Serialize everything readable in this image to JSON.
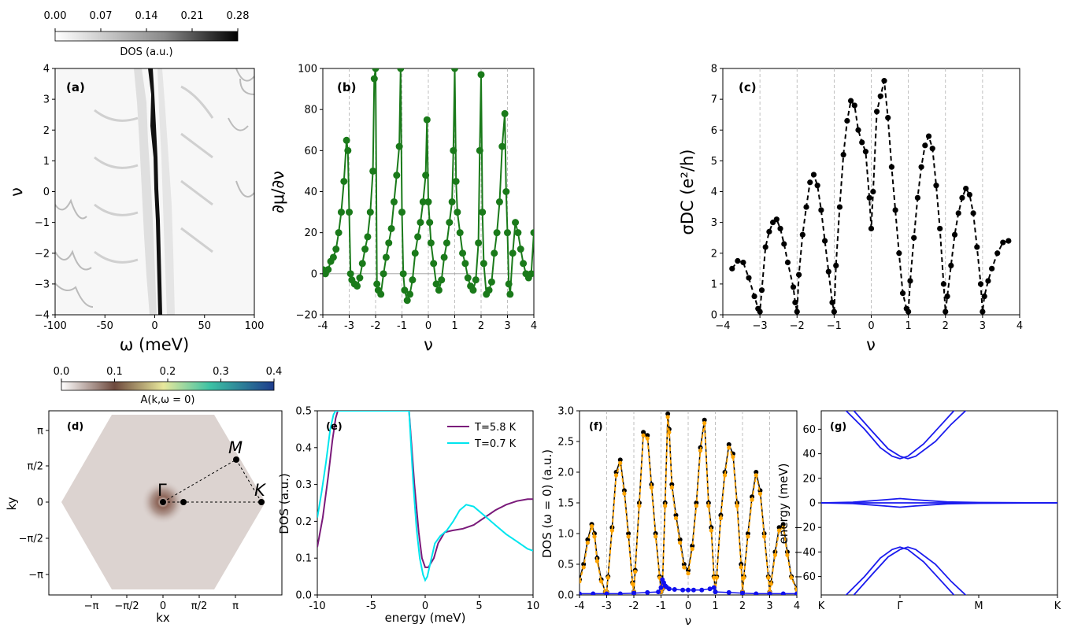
{
  "chart_data": [
    {
      "panel": "(a)",
      "type": "heatmap",
      "xlabel": "ω (meV)",
      "ylabel": "ν",
      "xlim": [
        -100,
        100
      ],
      "ylim": [
        -4,
        4
      ],
      "xticks": [
        "-100",
        "-50",
        "0",
        "50",
        "100"
      ],
      "yticks": [
        "4",
        "3",
        "2",
        "1",
        "0",
        "−1",
        "−2",
        "−3",
        "−4"
      ],
      "colorbar": {
        "label": "DOS (a.u.)",
        "ticks": [
          "0.00",
          "0.07",
          "0.14",
          "0.21",
          "0.28"
        ],
        "colors": [
          "#ffffff",
          "#000000"
        ]
      }
    },
    {
      "panel": "(b)",
      "type": "line",
      "ylabel": "∂μ/∂ν",
      "xlabel": "ν",
      "xlim": [
        -4,
        4
      ],
      "ylim": [
        -20,
        100
      ],
      "xticks": [
        "-4",
        "-3",
        "-2",
        "-1",
        "0",
        "1",
        "2",
        "3",
        "4"
      ],
      "yticks": [
        "100",
        "80",
        "60",
        "40",
        "20",
        "0",
        "−20"
      ],
      "color": "#1a7a1a",
      "x": [
        -4.0,
        -3.9,
        -3.8,
        -3.7,
        -3.6,
        -3.5,
        -3.4,
        -3.3,
        -3.2,
        -3.1,
        -3.05,
        -3.0,
        -2.95,
        -2.9,
        -2.8,
        -2.7,
        -2.6,
        -2.5,
        -2.4,
        -2.3,
        -2.2,
        -2.1,
        -2.05,
        -2.0,
        -1.95,
        -1.9,
        -1.8,
        -1.7,
        -1.6,
        -1.5,
        -1.4,
        -1.3,
        -1.2,
        -1.1,
        -1.05,
        -1.0,
        -0.95,
        -0.9,
        -0.8,
        -0.7,
        -0.6,
        -0.5,
        -0.4,
        -0.3,
        -0.2,
        -0.1,
        -0.05,
        0.0,
        0.05,
        0.1,
        0.2,
        0.3,
        0.4,
        0.5,
        0.6,
        0.7,
        0.8,
        0.9,
        0.95,
        1.0,
        1.05,
        1.1,
        1.2,
        1.3,
        1.4,
        1.5,
        1.6,
        1.7,
        1.8,
        1.9,
        1.95,
        2.0,
        2.05,
        2.1,
        2.2,
        2.3,
        2.4,
        2.5,
        2.6,
        2.7,
        2.8,
        2.9,
        2.95,
        3.0,
        3.05,
        3.1,
        3.2,
        3.3,
        3.4,
        3.5,
        3.6,
        3.7,
        3.8,
        3.9,
        4.0
      ],
      "y": [
        2,
        0,
        2,
        6,
        8,
        12,
        20,
        30,
        45,
        65,
        60,
        30,
        0,
        -3,
        -5,
        -6,
        -2,
        5,
        12,
        18,
        30,
        50,
        95,
        100,
        -5,
        -8,
        -10,
        0,
        8,
        15,
        22,
        35,
        48,
        62,
        100,
        30,
        0,
        -8,
        -13,
        -10,
        -3,
        10,
        18,
        25,
        35,
        48,
        75,
        35,
        25,
        15,
        5,
        -5,
        -8,
        -3,
        8,
        15,
        25,
        35,
        60,
        100,
        45,
        30,
        20,
        10,
        5,
        -2,
        -6,
        -8,
        -3,
        15,
        60,
        97,
        30,
        5,
        -10,
        -8,
        -4,
        10,
        20,
        35,
        62,
        78,
        40,
        20,
        -5,
        -10,
        10,
        25,
        20,
        12,
        5,
        0,
        -2,
        0,
        20
      ]
    },
    {
      "panel": "(c)",
      "type": "line",
      "ylabel": "σDC (e²/h)",
      "xlabel": "ν",
      "xlim": [
        -4,
        4
      ],
      "ylim": [
        0,
        8
      ],
      "xticks": [
        "−4",
        "−3",
        "−2",
        "−1",
        "0",
        "1",
        "2",
        "3",
        "4"
      ],
      "yticks": [
        "8",
        "7",
        "6",
        "5",
        "4",
        "3",
        "2",
        "1",
        "0"
      ],
      "color": "#000000",
      "x": [
        -3.75,
        -3.6,
        -3.45,
        -3.3,
        -3.15,
        -3.05,
        -3.0,
        -2.95,
        -2.85,
        -2.75,
        -2.65,
        -2.55,
        -2.45,
        -2.35,
        -2.25,
        -2.1,
        -2.05,
        -2.0,
        -1.95,
        -1.85,
        -1.75,
        -1.65,
        -1.55,
        -1.45,
        -1.35,
        -1.25,
        -1.15,
        -1.05,
        -1.0,
        -0.95,
        -0.85,
        -0.75,
        -0.65,
        -0.55,
        -0.45,
        -0.35,
        -0.25,
        -0.15,
        -0.05,
        0.0,
        0.05,
        0.15,
        0.25,
        0.35,
        0.45,
        0.55,
        0.65,
        0.75,
        0.85,
        0.95,
        1.0,
        1.05,
        1.15,
        1.25,
        1.35,
        1.45,
        1.55,
        1.65,
        1.75,
        1.85,
        1.95,
        2.0,
        2.05,
        2.15,
        2.25,
        2.35,
        2.45,
        2.55,
        2.65,
        2.75,
        2.85,
        2.95,
        3.0,
        3.05,
        3.15,
        3.25,
        3.4,
        3.55,
        3.7
      ],
      "y": [
        1.5,
        1.75,
        1.7,
        1.2,
        0.6,
        0.2,
        0.1,
        0.8,
        2.2,
        2.7,
        3.0,
        3.1,
        2.8,
        2.3,
        1.7,
        0.9,
        0.4,
        0.1,
        1.3,
        2.6,
        3.5,
        4.3,
        4.55,
        4.2,
        3.4,
        2.4,
        1.4,
        0.4,
        0.1,
        1.6,
        3.5,
        5.2,
        6.3,
        6.95,
        6.8,
        6.0,
        5.6,
        5.3,
        3.8,
        2.8,
        4.0,
        6.6,
        7.1,
        7.6,
        6.4,
        4.8,
        3.4,
        2.0,
        0.7,
        0.2,
        0.1,
        1.1,
        2.5,
        3.8,
        4.8,
        5.5,
        5.8,
        5.4,
        4.2,
        2.8,
        1.0,
        0.1,
        0.6,
        1.6,
        2.6,
        3.3,
        3.8,
        4.1,
        3.9,
        3.3,
        2.2,
        1.0,
        0.1,
        0.6,
        1.1,
        1.5,
        2.0,
        2.35,
        2.4
      ]
    },
    {
      "panel": "(d)",
      "type": "heatmap",
      "xlabel": "kx",
      "ylabel": "ky",
      "xticks": [
        "−π",
        "−π/2",
        "0",
        "π/2",
        "π"
      ],
      "yticks": [
        "π",
        "π/2",
        "0",
        "−π/2",
        "−π"
      ],
      "point_labels": [
        "Γ",
        "M",
        "K"
      ],
      "colorbar": {
        "label": "A(k,ω = 0)",
        "ticks": [
          "0.0",
          "0.1",
          "0.2",
          "0.3",
          "0.4"
        ],
        "colors": [
          "#ffffff",
          "#6e4a3e",
          "#e8e89c",
          "#3cc2a4",
          "#1e3c8c"
        ]
      }
    },
    {
      "panel": "(e)",
      "type": "line",
      "xlabel": "energy (meV)",
      "ylabel": "DOS (a.u.)",
      "xlim": [
        -10,
        10
      ],
      "ylim": [
        0,
        0.5
      ],
      "xticks": [
        "-10",
        "-5",
        "0",
        "5",
        "10"
      ],
      "yticks": [
        "0.5",
        "0.4",
        "0.3",
        "0.2",
        "0.1",
        "0.0"
      ],
      "series": [
        {
          "name": "T=5.8 K",
          "color": "#7a1a7a",
          "x": [
            -10,
            -9.5,
            -9,
            -8.6,
            -8.3,
            -8.1,
            -1.5,
            -1.0,
            -0.6,
            -0.3,
            0.0,
            0.3,
            0.8,
            1.2,
            1.8,
            2.5,
            3.5,
            4.5,
            5.5,
            6.5,
            7.5,
            8.5,
            9.5,
            10
          ],
          "y": [
            0.13,
            0.21,
            0.32,
            0.42,
            0.48,
            0.5,
            0.5,
            0.3,
            0.17,
            0.1,
            0.075,
            0.075,
            0.1,
            0.14,
            0.17,
            0.175,
            0.18,
            0.19,
            0.21,
            0.23,
            0.245,
            0.255,
            0.26,
            0.26
          ]
        },
        {
          "name": "T=0.7 K",
          "color": "#00e5ee",
          "x": [
            -10,
            -9.6,
            -9.2,
            -8.8,
            -8.5,
            -8.3,
            -1.5,
            -1.1,
            -0.8,
            -0.5,
            -0.2,
            0.0,
            0.2,
            0.5,
            0.9,
            1.4,
            2.0,
            2.6,
            3.2,
            3.8,
            4.5,
            5.5,
            6.5,
            7.5,
            8.5,
            9.5,
            10
          ],
          "y": [
            0.21,
            0.28,
            0.36,
            0.45,
            0.49,
            0.5,
            0.5,
            0.3,
            0.18,
            0.1,
            0.055,
            0.04,
            0.05,
            0.09,
            0.14,
            0.16,
            0.175,
            0.2,
            0.23,
            0.245,
            0.24,
            0.215,
            0.19,
            0.165,
            0.145,
            0.125,
            0.12
          ]
        }
      ]
    },
    {
      "panel": "(f)",
      "type": "line",
      "xlabel": "ν",
      "ylabel": "DOS (ω = 0) (a.u.)",
      "xlim": [
        -4,
        4
      ],
      "ylim": [
        0,
        3.0
      ],
      "xticks": [
        "-4",
        "-3",
        "-2",
        "-1",
        "0",
        "1",
        "2",
        "3",
        "4"
      ],
      "yticks": [
        "3.0",
        "2.5",
        "2.0",
        "1.5",
        "1.0",
        "0.5",
        "0.0"
      ],
      "series": [
        {
          "color": "#000000",
          "x": [
            -4.0,
            -3.85,
            -3.7,
            -3.55,
            -3.45,
            -3.35,
            -3.2,
            -3.05,
            -3.0,
            -2.95,
            -2.8,
            -2.65,
            -2.5,
            -2.35,
            -2.2,
            -2.05,
            -2.0,
            -1.95,
            -1.8,
            -1.65,
            -1.5,
            -1.35,
            -1.2,
            -1.05,
            -1.0,
            -0.95,
            -0.85,
            -0.75,
            -0.7,
            -0.6,
            -0.45,
            -0.3,
            -0.15,
            0.0,
            0.15,
            0.3,
            0.45,
            0.6,
            0.75,
            0.85,
            0.95,
            1.0,
            1.05,
            1.2,
            1.35,
            1.5,
            1.65,
            1.8,
            1.95,
            2.0,
            2.05,
            2.2,
            2.35,
            2.5,
            2.65,
            2.8,
            2.95,
            3.0,
            3.05,
            3.2,
            3.35,
            3.5,
            3.65,
            3.8,
            4.0
          ],
          "y": [
            0.25,
            0.5,
            0.9,
            1.15,
            1.0,
            0.6,
            0.25,
            0.05,
            0.05,
            0.3,
            1.1,
            2.0,
            2.2,
            1.7,
            1.0,
            0.2,
            0.05,
            0.4,
            1.5,
            2.65,
            2.6,
            1.8,
            1.0,
            0.3,
            0.05,
            0.1,
            1.5,
            2.95,
            2.7,
            1.8,
            1.3,
            0.9,
            0.5,
            0.4,
            0.8,
            1.5,
            2.4,
            2.85,
            1.5,
            1.1,
            0.3,
            0.05,
            0.3,
            1.3,
            2.0,
            2.45,
            2.3,
            1.5,
            0.5,
            0.05,
            0.3,
            1.0,
            1.6,
            2.0,
            1.7,
            1.0,
            0.3,
            0.05,
            0.2,
            0.7,
            1.1,
            1.15,
            0.7,
            0.3,
            0.1
          ]
        },
        {
          "color": "#ffa500",
          "x": [
            -4.0,
            -3.85,
            -3.7,
            -3.55,
            -3.45,
            -3.35,
            -3.2,
            -3.05,
            -3.0,
            -2.95,
            -2.8,
            -2.65,
            -2.5,
            -2.35,
            -2.2,
            -2.05,
            -2.0,
            -1.95,
            -1.8,
            -1.65,
            -1.5,
            -1.35,
            -1.2,
            -1.05,
            -1.0,
            -0.95,
            -0.85,
            -0.75,
            -0.7,
            -0.6,
            -0.45,
            -0.3,
            -0.15,
            0.0,
            0.15,
            0.3,
            0.45,
            0.6,
            0.75,
            0.85,
            0.95,
            1.0,
            1.05,
            1.2,
            1.35,
            1.5,
            1.65,
            1.8,
            1.95,
            2.0,
            2.05,
            2.2,
            2.35,
            2.5,
            2.65,
            2.8,
            2.95,
            3.0,
            3.05,
            3.2,
            3.35,
            3.5,
            3.65,
            3.8,
            4.0
          ],
          "y": [
            0.22,
            0.45,
            0.85,
            1.12,
            0.95,
            0.55,
            0.22,
            0.05,
            0.05,
            0.28,
            1.05,
            1.95,
            2.15,
            1.65,
            0.95,
            0.18,
            0.05,
            0.38,
            1.45,
            2.6,
            2.55,
            1.75,
            0.95,
            0.28,
            0.05,
            0.1,
            1.45,
            2.9,
            2.65,
            1.75,
            1.25,
            0.85,
            0.45,
            0.35,
            0.75,
            1.45,
            2.35,
            2.8,
            1.45,
            1.05,
            0.28,
            0.05,
            0.28,
            1.25,
            1.95,
            2.4,
            2.25,
            1.45,
            0.45,
            0.05,
            0.28,
            0.95,
            1.55,
            1.95,
            1.65,
            0.95,
            0.28,
            0.05,
            0.18,
            0.65,
            1.05,
            1.1,
            0.65,
            0.28,
            0.08
          ]
        },
        {
          "color": "#1010ee",
          "x": [
            -4.0,
            -3.5,
            -3.0,
            -2.5,
            -2.0,
            -1.5,
            -1.1,
            -1.0,
            -0.95,
            -0.9,
            -0.85,
            -0.8,
            -0.7,
            -0.5,
            -0.2,
            0.0,
            0.2,
            0.5,
            0.8,
            0.95,
            1.0,
            1.5,
            2.0,
            2.5,
            3.0,
            3.5,
            4.0
          ],
          "y": [
            0.02,
            0.02,
            0.02,
            0.02,
            0.03,
            0.04,
            0.05,
            0.12,
            0.25,
            0.2,
            0.15,
            0.13,
            0.1,
            0.09,
            0.08,
            0.08,
            0.08,
            0.08,
            0.1,
            0.12,
            0.05,
            0.04,
            0.03,
            0.02,
            0.02,
            0.02,
            0.02
          ]
        }
      ]
    },
    {
      "panel": "(g)",
      "type": "line",
      "ylabel": "energy (meV)",
      "xlim": [
        0,
        3
      ],
      "ylim": [
        -75,
        75
      ],
      "xticks": [
        "K",
        "Γ",
        "M",
        "K"
      ],
      "yticks": [
        "60",
        "40",
        "20",
        "0",
        "−20",
        "−40",
        "−60"
      ],
      "color": "#1a1aee",
      "bands": [
        {
          "x": [
            0.3,
            0.55,
            0.75,
            0.9,
            1.0,
            1.1,
            1.3,
            1.5,
            1.7
          ],
          "y": [
            76,
            60,
            45,
            38,
            36,
            38,
            48,
            62,
            76
          ]
        },
        {
          "x": [
            0.4,
            0.65,
            0.85,
            1.0,
            1.1,
            1.2,
            1.45,
            1.65,
            1.85
          ],
          "y": [
            76,
            58,
            44,
            38,
            36,
            38,
            50,
            64,
            76
          ]
        },
        {
          "x": [
            0.3,
            0.55,
            0.75,
            0.9,
            1.0,
            1.1,
            1.3,
            1.5,
            1.7
          ],
          "y": [
            -76,
            -60,
            -45,
            -38,
            -36,
            -38,
            -48,
            -62,
            -76
          ]
        },
        {
          "x": [
            0.4,
            0.65,
            0.85,
            1.0,
            1.1,
            1.2,
            1.45,
            1.65,
            1.85
          ],
          "y": [
            -76,
            -58,
            -44,
            -38,
            -36,
            -38,
            -50,
            -64,
            -76
          ]
        },
        {
          "x": [
            0.0,
            0.4,
            0.8,
            1.0,
            1.2,
            1.6,
            2.0,
            2.5,
            3.0
          ],
          "y": [
            0,
            0.5,
            2.5,
            3.5,
            2.5,
            0.8,
            0.3,
            0.1,
            0
          ]
        },
        {
          "x": [
            0.0,
            0.4,
            0.8,
            1.0,
            1.2,
            1.6,
            2.0,
            2.5,
            3.0
          ],
          "y": [
            0,
            -0.5,
            -2.5,
            -3.5,
            -2.5,
            -0.8,
            -0.3,
            -0.1,
            0
          ]
        },
        {
          "x": [
            0.0,
            0.5,
            1.0,
            1.5,
            2.0,
            2.5,
            3.0
          ],
          "y": [
            0,
            0,
            0,
            0,
            0,
            0,
            0
          ]
        }
      ]
    }
  ]
}
